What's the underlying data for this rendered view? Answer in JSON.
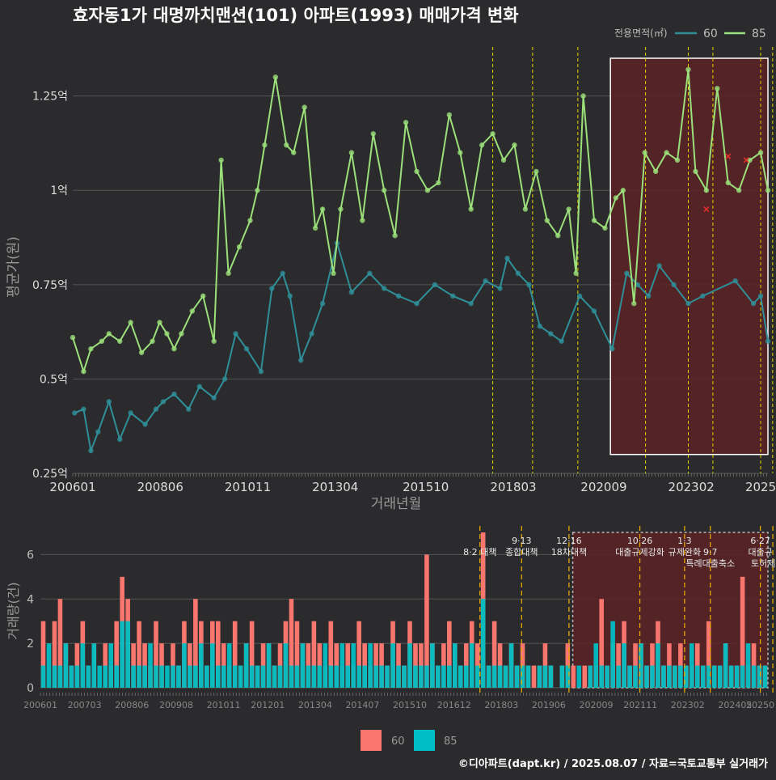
{
  "header": {
    "title": "효자동1가 대명까치맨션(101) 아파트(1993) 매매가격 변화",
    "legend_title": "전용면적(㎡)",
    "credit": "©디아파트(dapt.kr) / 2025.08.07 / 자료=국토교통부 실거래가"
  },
  "colors": {
    "background": "#2b2b2d",
    "series60_line": "#2f8f99",
    "series85_line": "#9be07a",
    "bar60": "#f8766d",
    "bar85": "#00bfc4",
    "policy_line": "#e6d200",
    "highlight_fill": "#5a2226",
    "marker_x": "#e0302a"
  },
  "chart_data": [
    {
      "type": "line",
      "title": "효자동1가 대명까치맨션(101) 아파트(1993) 매매가격 변화",
      "xlabel": "거래년월",
      "ylabel": "평균가(원)",
      "x_ticks": [
        "200601",
        "200806",
        "201011",
        "201304",
        "201510",
        "201803",
        "202009",
        "202302",
        "2025"
      ],
      "y_ticks": [
        {
          "value": 0.25,
          "label": "0.25억"
        },
        {
          "value": 0.5,
          "label": "0.5억"
        },
        {
          "value": 0.75,
          "label": "0.75억"
        },
        {
          "value": 1.0,
          "label": "1억"
        },
        {
          "value": 1.25,
          "label": "1.25억"
        }
      ],
      "ylim": [
        0.25,
        1.38
      ],
      "xlim": [
        2006.0,
        2025.2
      ],
      "grid": true,
      "legend_position": "top-right",
      "policy_lines": [
        2017.6,
        2018.7,
        2019.95,
        2021.82,
        2023.0,
        2023.68,
        2025.0,
        2025.33
      ],
      "highlight": {
        "x": [
          2020.85,
          2025.2
        ],
        "y": [
          0.3,
          1.35
        ]
      },
      "series": [
        {
          "name": "60",
          "x": [
            2006.05,
            2006.3,
            2006.5,
            2006.7,
            2007.0,
            2007.3,
            2007.6,
            2008.0,
            2008.3,
            2008.5,
            2008.8,
            2009.2,
            2009.5,
            2009.9,
            2010.2,
            2010.5,
            2010.8,
            2011.2,
            2011.5,
            2011.8,
            2012.0,
            2012.3,
            2012.6,
            2012.9,
            2013.3,
            2013.7,
            2014.2,
            2014.6,
            2015.0,
            2015.5,
            2016.0,
            2016.5,
            2017.0,
            2017.4,
            2017.8,
            2018.0,
            2018.3,
            2018.6,
            2018.9,
            2019.2,
            2019.5,
            2020.0,
            2020.4,
            2020.9,
            2021.3,
            2021.6,
            2021.9,
            2022.2,
            2022.6,
            2023.0,
            2023.4,
            2024.3,
            2024.8,
            2025.0,
            2025.2
          ],
          "values": [
            0.41,
            0.42,
            0.31,
            0.36,
            0.44,
            0.34,
            0.41,
            0.38,
            0.42,
            0.44,
            0.46,
            0.42,
            0.48,
            0.45,
            0.5,
            0.62,
            0.58,
            0.52,
            0.74,
            0.78,
            0.72,
            0.55,
            0.62,
            0.7,
            0.86,
            0.73,
            0.78,
            0.74,
            0.72,
            0.7,
            0.75,
            0.72,
            0.7,
            0.76,
            0.74,
            0.82,
            0.78,
            0.75,
            0.64,
            0.62,
            0.6,
            0.72,
            0.68,
            0.58,
            0.78,
            0.75,
            0.72,
            0.8,
            0.75,
            0.7,
            0.72,
            0.76,
            0.7,
            0.72,
            0.6
          ]
        },
        {
          "name": "85",
          "x": [
            2006.0,
            2006.3,
            2006.5,
            2006.8,
            2007.0,
            2007.3,
            2007.6,
            2007.9,
            2008.2,
            2008.4,
            2008.6,
            2008.8,
            2009.0,
            2009.3,
            2009.6,
            2009.9,
            2010.1,
            2010.3,
            2010.6,
            2010.9,
            2011.1,
            2011.3,
            2011.6,
            2011.9,
            2012.1,
            2012.4,
            2012.7,
            2012.9,
            2013.2,
            2013.4,
            2013.7,
            2014.0,
            2014.3,
            2014.6,
            2014.9,
            2015.2,
            2015.5,
            2015.8,
            2016.1,
            2016.4,
            2016.7,
            2017.0,
            2017.3,
            2017.6,
            2017.9,
            2018.2,
            2018.5,
            2018.8,
            2019.1,
            2019.4,
            2019.7,
            2019.9,
            2020.1,
            2020.4,
            2020.7,
            2021.0,
            2021.2,
            2021.5,
            2021.8,
            2022.1,
            2022.4,
            2022.7,
            2023.0,
            2023.2,
            2023.5,
            2023.8,
            2024.1,
            2024.4,
            2024.7,
            2025.0,
            2025.2
          ],
          "values": [
            0.61,
            0.52,
            0.58,
            0.6,
            0.62,
            0.6,
            0.65,
            0.57,
            0.6,
            0.65,
            0.62,
            0.58,
            0.62,
            0.68,
            0.72,
            0.6,
            1.08,
            0.78,
            0.85,
            0.92,
            1.0,
            1.12,
            1.3,
            1.12,
            1.1,
            1.22,
            0.9,
            0.95,
            0.78,
            0.95,
            1.1,
            0.92,
            1.15,
            1.0,
            0.88,
            1.18,
            1.05,
            1.0,
            1.02,
            1.2,
            1.1,
            0.95,
            1.12,
            1.15,
            1.08,
            1.12,
            0.95,
            1.05,
            0.92,
            0.88,
            0.95,
            0.78,
            1.25,
            0.92,
            0.9,
            0.98,
            1.0,
            0.7,
            1.1,
            1.05,
            1.1,
            1.08,
            1.32,
            1.05,
            1.0,
            1.27,
            1.02,
            1.0,
            1.08,
            1.1,
            1.0
          ]
        }
      ],
      "marker_points": [
        {
          "x": 2023.5,
          "y": 0.95
        },
        {
          "x": 2024.1,
          "y": 1.09
        },
        {
          "x": 2024.6,
          "y": 1.08
        }
      ]
    },
    {
      "type": "bar",
      "ylabel": "거래량(건)",
      "x_ticks": [
        "200601",
        "200703",
        "200806",
        "200908",
        "201011",
        "201201",
        "201304",
        "201407",
        "201510",
        "201612",
        "201803",
        "201906",
        "202009",
        "202111",
        "202302",
        "202405",
        "20250"
      ],
      "y_ticks": [
        0,
        2,
        4,
        6
      ],
      "ylim": [
        0,
        7
      ],
      "grid": true,
      "legend_position": "bottom",
      "policy_lines": [
        2017.6,
        2018.7,
        2019.95,
        2021.82,
        2023.0,
        2023.68,
        2025.0,
        2025.33
      ],
      "highlight": {
        "x": [
          2020.05,
          2025.2
        ],
        "y": [
          0,
          7
        ]
      },
      "annotations": [
        {
          "x": 2017.6,
          "lines": [
            "8·2 대책"
          ],
          "row": 1
        },
        {
          "x": 2018.7,
          "lines": [
            "9·13",
            "종합대책"
          ],
          "row": 0
        },
        {
          "x": 2019.95,
          "lines": [
            "12·16",
            "18차대책"
          ],
          "row": 0
        },
        {
          "x": 2021.82,
          "lines": [
            "10·26",
            "대출규제강화"
          ],
          "row": 0
        },
        {
          "x": 2023.0,
          "lines": [
            "1·3",
            "규제완화"
          ],
          "row": 0
        },
        {
          "x": 2023.68,
          "lines": [
            "9·7",
            "특례대출축소"
          ],
          "row": 1
        },
        {
          "x": 2025.0,
          "lines": [
            "6·27",
            "대출규"
          ],
          "row": 0
        },
        {
          "x": 2025.33,
          "lines": [
            "토허제 해제"
          ],
          "row": 2
        }
      ],
      "series": [
        {
          "name": "60",
          "counts": [
            3,
            0,
            3,
            4,
            2,
            1,
            2,
            3,
            1,
            2,
            0,
            2,
            1,
            3,
            5,
            4,
            2,
            3,
            2,
            1,
            3,
            2,
            0,
            2,
            1,
            3,
            2,
            4,
            3,
            1,
            3,
            3,
            2,
            1,
            3,
            1,
            2,
            3,
            1,
            2,
            2,
            1,
            2,
            3,
            4,
            3,
            2,
            2,
            3,
            2,
            1,
            3,
            2,
            1,
            2,
            1,
            3,
            2,
            1,
            2,
            2,
            1,
            3,
            2,
            1,
            3,
            2,
            2,
            6,
            2,
            1,
            2,
            3,
            2,
            1,
            2,
            3,
            2,
            7,
            1,
            3,
            2,
            1,
            2,
            1,
            2,
            1,
            1,
            1,
            2,
            1,
            0,
            1,
            2,
            1,
            0,
            1,
            1,
            1,
            4,
            1,
            2,
            2,
            3,
            1,
            2,
            2,
            1,
            2,
            3,
            1,
            2,
            1,
            2,
            1,
            1,
            2,
            1,
            3,
            1,
            1,
            2,
            1,
            1,
            5,
            1,
            2,
            1,
            1
          ]
        },
        {
          "name": "85",
          "counts": [
            1,
            2,
            1,
            1,
            2,
            1,
            1,
            2,
            1,
            2,
            1,
            1,
            2,
            1,
            3,
            3,
            1,
            1,
            1,
            2,
            1,
            1,
            1,
            1,
            1,
            2,
            1,
            1,
            2,
            1,
            2,
            1,
            1,
            2,
            1,
            1,
            2,
            1,
            1,
            1,
            2,
            1,
            1,
            2,
            1,
            1,
            2,
            1,
            1,
            1,
            2,
            1,
            1,
            2,
            1,
            2,
            1,
            1,
            2,
            1,
            1,
            1,
            2,
            1,
            1,
            2,
            1,
            1,
            1,
            2,
            1,
            1,
            1,
            2,
            1,
            1,
            2,
            1,
            4,
            1,
            1,
            1,
            1,
            2,
            1,
            1,
            1,
            0,
            1,
            1,
            1,
            0,
            1,
            1,
            0,
            1,
            0,
            1,
            2,
            1,
            1,
            3,
            1,
            2,
            1,
            1,
            2,
            1,
            1,
            2,
            1,
            1,
            1,
            1,
            1,
            2,
            1,
            1,
            1,
            1,
            1,
            2,
            1,
            1,
            1,
            2,
            1,
            1,
            1
          ]
        }
      ]
    }
  ]
}
